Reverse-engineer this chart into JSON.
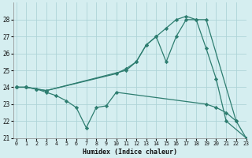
{
  "line1_x": [
    0,
    1,
    2,
    3,
    11,
    12,
    13,
    14,
    15,
    16,
    17,
    18,
    19,
    22
  ],
  "line1_y": [
    24,
    24,
    23.9,
    23.8,
    25.0,
    25.5,
    26.5,
    27.0,
    27.5,
    28.0,
    28.2,
    28.0,
    28.0,
    22.0
  ],
  "line2_x": [
    0,
    1,
    2,
    3,
    10,
    11,
    12,
    13,
    14,
    15,
    16,
    17,
    18,
    19,
    20,
    21,
    23
  ],
  "line2_y": [
    24,
    24,
    23.9,
    23.8,
    24.8,
    25.1,
    25.5,
    26.5,
    27.0,
    25.5,
    27.0,
    28.0,
    28.0,
    26.3,
    24.5,
    22.0,
    21.0
  ],
  "line3_x": [
    0,
    1,
    2,
    3,
    4,
    5,
    6,
    7,
    8,
    9,
    10,
    19,
    20,
    21,
    22,
    23
  ],
  "line3_y": [
    24,
    24,
    23.9,
    23.7,
    23.5,
    23.2,
    22.8,
    21.6,
    22.8,
    22.9,
    23.7,
    23.0,
    22.8,
    22.5,
    22.0,
    21.0
  ],
  "color": "#2d7d70",
  "bg_color": "#d5eef0",
  "grid_color": "#aed4d8",
  "xlabel": "Humidex (Indice chaleur)",
  "ylim": [
    21,
    29
  ],
  "xlim": [
    -0.3,
    23
  ],
  "yticks": [
    21,
    22,
    23,
    24,
    25,
    26,
    27,
    28
  ],
  "xticks": [
    0,
    1,
    2,
    3,
    4,
    5,
    6,
    7,
    8,
    9,
    10,
    11,
    12,
    13,
    14,
    15,
    16,
    17,
    18,
    19,
    20,
    21,
    22,
    23
  ]
}
